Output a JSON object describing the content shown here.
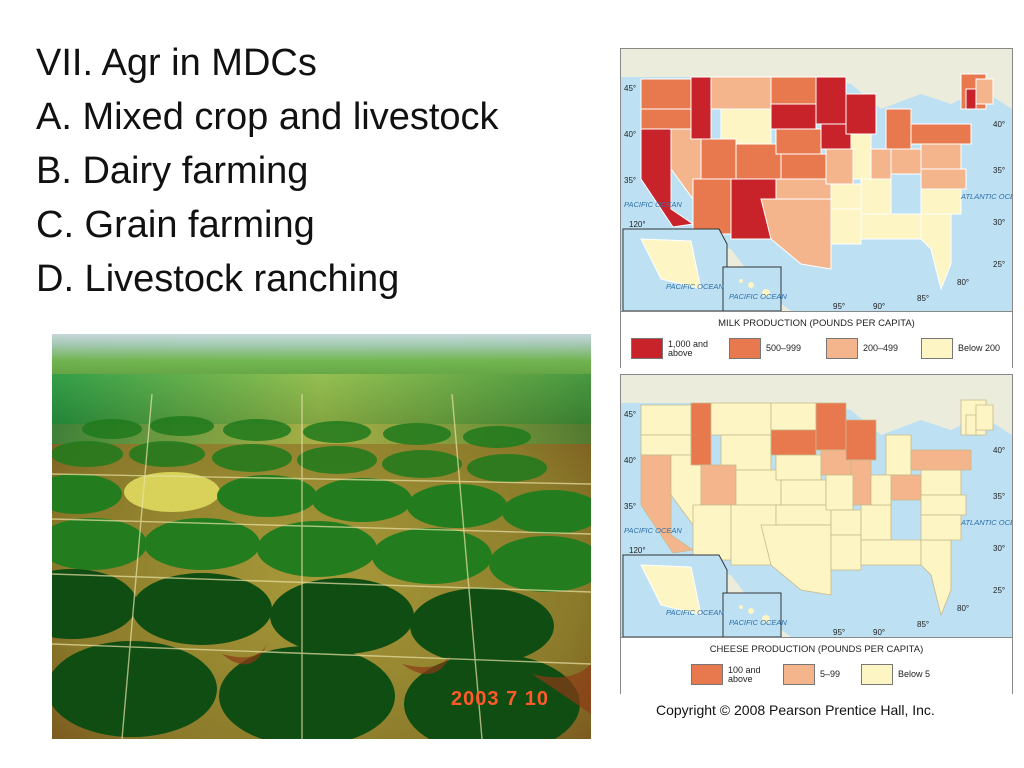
{
  "outline": {
    "heading": "VII.  Agr in MDCs",
    "items": [
      "A.  Mixed crop and livestock",
      "B.  Dairy farming",
      "C.  Grain farming",
      "D.  Livestock ranching"
    ]
  },
  "photo": {
    "date_stamp": "2003  7 10"
  },
  "milk_map": {
    "legend_title": "MILK PRODUCTION (POUNDS PER CAPITA)",
    "legend": [
      {
        "label": "1,000 and above",
        "color": "#c8232a"
      },
      {
        "label": "500–999",
        "color": "#e8794f"
      },
      {
        "label": "200–499",
        "color": "#f5b58c"
      },
      {
        "label": "Below 200",
        "color": "#fdf5c4"
      }
    ],
    "pacific_label": "PACIFIC OCEAN",
    "atlantic_label": "ATLANTIC OCEAN",
    "lat_labels": [
      "45°",
      "40°",
      "35°",
      "30°",
      "25°",
      "40°",
      "35°"
    ],
    "lon_labels": [
      "120°",
      "95°",
      "90°",
      "85°",
      "80°"
    ],
    "inset_labels": [
      "PACIFIC OCEAN",
      "PACIFIC OCEAN"
    ]
  },
  "cheese_map": {
    "legend_title": "CHEESE PRODUCTION (POUNDS PER CAPITA)",
    "legend": [
      {
        "label": "100 and above",
        "color": "#e8794f"
      },
      {
        "label": "5–99",
        "color": "#f5b58c"
      },
      {
        "label": "Below 5",
        "color": "#fdf5c4"
      }
    ],
    "pacific_label": "PACIFIC OCEAN",
    "atlantic_label": "ATLANTIC OCEAN",
    "lat_labels": [
      "45°",
      "40°",
      "35°",
      "30°",
      "25°",
      "40°",
      "35°"
    ],
    "lon_labels": [
      "120°",
      "95°",
      "90°",
      "85°",
      "80°"
    ],
    "inset_labels": [
      "PACIFIC OCEAN",
      "PACIFIC OCEAN"
    ]
  },
  "copyright": "Copyright © 2008 Pearson Prentice Hall, Inc."
}
